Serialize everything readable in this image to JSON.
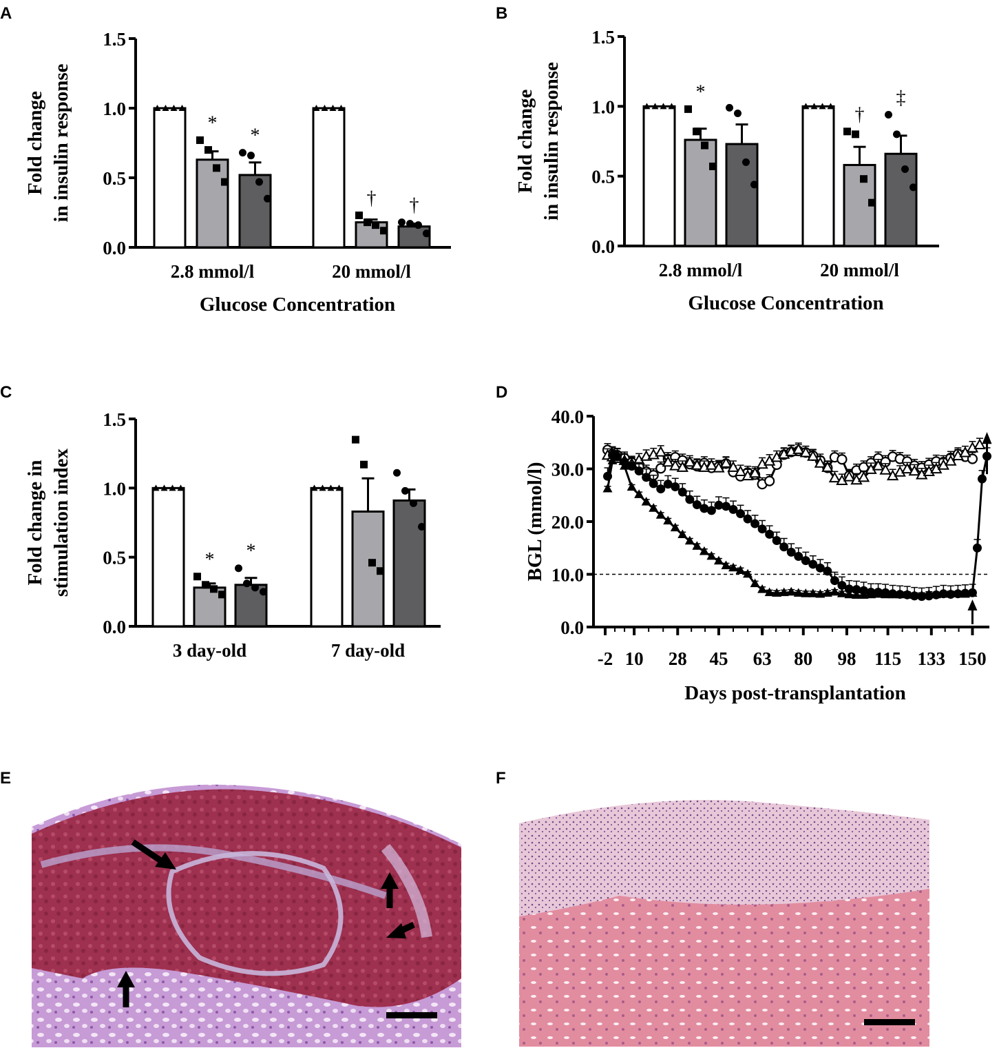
{
  "colors": {
    "white": "#ffffff",
    "light_gray": "#a7a7ab",
    "dark_gray": "#5e5e61",
    "ink": "#000000"
  },
  "chart_data": [
    {
      "panel": "A",
      "type": "bar",
      "categories": [
        "2.8 mmol/l",
        "20 mmol/l"
      ],
      "xlabel": "Glucose Concentration",
      "ylabel_lines": [
        "Fold change",
        "in insulin response"
      ],
      "ylim": [
        0,
        1.5
      ],
      "yticks": [
        "0.0",
        "0.5",
        "1.0",
        "1.5"
      ],
      "series": [
        {
          "fill": "white",
          "marker": "triangle",
          "values": [
            1.0,
            1.0
          ],
          "errors": [
            0,
            0
          ],
          "points": [
            [
              1,
              1,
              1,
              1
            ],
            [
              1,
              1,
              1,
              1
            ]
          ],
          "annotations": [
            "",
            ""
          ]
        },
        {
          "fill": "light_gray",
          "marker": "square",
          "values": [
            0.63,
            0.18
          ],
          "errors": [
            0.06,
            0.02
          ],
          "points": [
            [
              0.77,
              0.7,
              0.57,
              0.47
            ],
            [
              0.23,
              0.18,
              0.16,
              0.12
            ]
          ],
          "annotations": [
            "*",
            "†"
          ]
        },
        {
          "fill": "dark_gray",
          "marker": "circle",
          "values": [
            0.52,
            0.15
          ],
          "errors": [
            0.09,
            0.02
          ],
          "points": [
            [
              0.68,
              0.66,
              0.47,
              0.35
            ],
            [
              0.18,
              0.17,
              0.16,
              0.1
            ]
          ],
          "annotations": [
            "*",
            "†"
          ]
        }
      ]
    },
    {
      "panel": "B",
      "type": "bar",
      "categories": [
        "2.8 mmol/l",
        "20 mmol/l"
      ],
      "xlabel": "Glucose Concentration",
      "ylabel_lines": [
        "Fold change",
        "in insulin response"
      ],
      "ylim": [
        0,
        1.5
      ],
      "yticks": [
        "0.0",
        "0.5",
        "1.0",
        "1.5"
      ],
      "series": [
        {
          "fill": "white",
          "marker": "triangle",
          "values": [
            1.0,
            1.0
          ],
          "errors": [
            0,
            0
          ],
          "points": [
            [
              1,
              1,
              1,
              1
            ],
            [
              1,
              1,
              1,
              1
            ]
          ],
          "annotations": [
            "",
            ""
          ]
        },
        {
          "fill": "light_gray",
          "marker": "square",
          "values": [
            0.76,
            0.58
          ],
          "errors": [
            0.08,
            0.13
          ],
          "points": [
            [
              0.98,
              0.82,
              0.72,
              0.57
            ],
            [
              0.82,
              0.8,
              0.48,
              0.31
            ]
          ],
          "annotations": [
            "*",
            "†"
          ]
        },
        {
          "fill": "dark_gray",
          "marker": "circle",
          "values": [
            0.73,
            0.66
          ],
          "errors": [
            0.14,
            0.13
          ],
          "points": [
            [
              0.99,
              0.95,
              0.6,
              0.44
            ],
            [
              0.94,
              0.8,
              0.55,
              0.42
            ]
          ],
          "annotations": [
            "",
            "‡"
          ]
        }
      ]
    },
    {
      "panel": "C",
      "type": "bar",
      "categories": [
        "3 day-old",
        "7 day-old"
      ],
      "xlabel": "",
      "ylabel_lines": [
        "Fold change in",
        "stimulation index"
      ],
      "ylim": [
        0,
        1.5
      ],
      "yticks": [
        "0.0",
        "0.5",
        "1.0",
        "1.5"
      ],
      "series": [
        {
          "fill": "white",
          "marker": "triangle",
          "values": [
            1.0,
            1.0
          ],
          "errors": [
            0,
            0
          ],
          "points": [
            [
              1,
              1,
              1,
              1
            ],
            [
              1,
              1,
              1,
              1
            ]
          ],
          "annotations": [
            "",
            ""
          ]
        },
        {
          "fill": "light_gray",
          "marker": "square",
          "values": [
            0.28,
            0.83
          ],
          "errors": [
            0.03,
            0.24
          ],
          "points": [
            [
              0.36,
              0.3,
              0.27,
              0.23
            ],
            [
              1.35,
              1.17,
              0.46,
              0.4
            ]
          ],
          "annotations": [
            "*",
            ""
          ]
        },
        {
          "fill": "dark_gray",
          "marker": "circle",
          "values": [
            0.3,
            0.91
          ],
          "errors": [
            0.05,
            0.08
          ],
          "points": [
            [
              0.42,
              0.31,
              0.28,
              0.25
            ],
            [
              1.11,
              0.98,
              0.89,
              0.72
            ]
          ],
          "annotations": [
            "*",
            ""
          ]
        }
      ]
    },
    {
      "panel": "D",
      "type": "line",
      "xlabel": "Days post-transplantation",
      "ylabel": "BGL (mmol/l)",
      "xlim": [
        -2,
        157
      ],
      "ylim": [
        0,
        40
      ],
      "xticks": [
        -2,
        10,
        28,
        45,
        63,
        80,
        98,
        115,
        133,
        150
      ],
      "xtick_labels": [
        "-2",
        "10",
        "28",
        "45",
        "63",
        "80",
        "98",
        "115",
        "133",
        "150"
      ],
      "yticks": [
        0,
        10,
        20,
        30,
        40
      ],
      "ytick_labels": [
        "0.0",
        "10.0",
        "20.0",
        "30.0",
        "40.0"
      ],
      "reference_line": 10,
      "series": [
        {
          "marker": "open-circle",
          "x": [
            -1,
            1,
            3,
            6,
            9,
            12,
            15,
            18,
            21,
            24,
            27,
            30,
            33,
            36,
            39,
            42,
            45,
            48,
            51,
            54,
            57,
            60,
            63,
            66,
            69,
            72,
            75,
            78,
            81,
            84,
            87,
            90,
            93,
            96,
            99,
            102,
            105,
            108,
            111,
            114,
            117,
            120,
            123,
            126,
            129,
            132,
            135,
            138,
            141,
            144,
            147,
            150
          ],
          "y": [
            33.6,
            32.8,
            32.6,
            32,
            31.2,
            30.4,
            29.5,
            28.8,
            30.1,
            31.9,
            32.2,
            31.6,
            30.9,
            30.5,
            31.1,
            30.2,
            30.4,
            31,
            29.4,
            28.6,
            29.3,
            28.9,
            27.1,
            27.7,
            30.8,
            32.7,
            33.2,
            33.4,
            33.1,
            32.5,
            31.6,
            30.2,
            32.2,
            31.8,
            28.7,
            29.7,
            30.3,
            31.1,
            32,
            31.3,
            32.3,
            31.9,
            31.4,
            30.6,
            30.2,
            30.8,
            31.4,
            31.3,
            32.1,
            32.8,
            32.3,
            31.9
          ],
          "err": 1.2
        },
        {
          "marker": "open-triangle",
          "x": [
            -1,
            1,
            3,
            6,
            9,
            12,
            15,
            18,
            21,
            24,
            27,
            30,
            33,
            36,
            39,
            42,
            45,
            48,
            51,
            54,
            57,
            60,
            63,
            66,
            69,
            72,
            75,
            78,
            81,
            84,
            87,
            90,
            93,
            96,
            99,
            102,
            105,
            108,
            111,
            114,
            117,
            120,
            123,
            126,
            129,
            132,
            135,
            138,
            141,
            144,
            147,
            150,
            153
          ],
          "y": [
            32.5,
            32.2,
            31.9,
            31.5,
            30.9,
            31.6,
            32.3,
            32.6,
            33.1,
            31.2,
            30.5,
            30.2,
            31.2,
            30.6,
            30.2,
            30.6,
            30.1,
            31,
            30.2,
            29.4,
            28.6,
            29.1,
            30.8,
            31.4,
            32.1,
            32.7,
            33.2,
            33.6,
            33,
            32.3,
            31,
            30.2,
            28.2,
            27.7,
            28.4,
            27.8,
            28.3,
            29.8,
            30.5,
            29.7,
            28.6,
            29.3,
            29.9,
            29.5,
            28.8,
            29.4,
            29.9,
            30.6,
            31.4,
            32.4,
            33,
            33.9,
            34.5
          ],
          "err": 1.3
        },
        {
          "marker": "filled-circle",
          "x": [
            -1,
            1,
            3,
            6,
            9,
            12,
            15,
            18,
            21,
            24,
            27,
            30,
            33,
            36,
            39,
            42,
            45,
            48,
            51,
            54,
            57,
            60,
            63,
            66,
            69,
            72,
            75,
            78,
            81,
            84,
            87,
            90,
            93,
            96,
            99,
            102,
            105,
            108,
            111,
            114,
            117,
            120,
            123,
            126,
            129,
            132,
            135,
            138,
            141,
            144,
            147,
            150,
            152,
            154,
            156
          ],
          "y": [
            28.6,
            32.6,
            32.3,
            31.3,
            30.5,
            29.6,
            28.4,
            27.2,
            26.2,
            27.1,
            26.6,
            25.6,
            24.2,
            23.2,
            22.5,
            22.1,
            23.1,
            22.9,
            22.3,
            21.5,
            20.5,
            19.6,
            18.6,
            17.6,
            16.4,
            15.2,
            14.2,
            13.4,
            12.6,
            11.9,
            11.2,
            10.6,
            8.8,
            7.9,
            7.2,
            7.1,
            6.9,
            6.6,
            6.6,
            6.5,
            6.3,
            6.2,
            6.1,
            5.9,
            5.8,
            5.9,
            6.1,
            6.3,
            6.2,
            6.3,
            6.4,
            6.5,
            15,
            28.1,
            32.4
          ],
          "err": 1.6
        },
        {
          "marker": "filled-triangle",
          "x": [
            -1,
            1,
            3,
            6,
            9,
            12,
            15,
            18,
            21,
            24,
            27,
            30,
            33,
            36,
            39,
            42,
            45,
            48,
            51,
            54,
            57,
            60,
            63,
            66,
            69,
            72,
            75,
            78,
            81,
            84,
            87,
            90,
            93,
            96,
            99,
            102,
            105,
            108,
            111,
            114,
            117,
            120,
            123,
            126,
            129,
            132,
            135,
            138,
            141,
            144,
            147,
            150
          ],
          "y": [
            26.2,
            31.5,
            32.3,
            30.5,
            26.5,
            25.1,
            23.7,
            22.5,
            21.2,
            20.1,
            18.8,
            17.5,
            16.3,
            15.3,
            14.3,
            13.4,
            12.5,
            11.6,
            11.2,
            10.7,
            10,
            8.2,
            7.1,
            6.5,
            6.4,
            6.5,
            6.6,
            6.4,
            6.3,
            6.3,
            6.2,
            6.4,
            6.6,
            6.3,
            6.1,
            6.0,
            6.0,
            6.1,
            6.2,
            6.1,
            6.1,
            6.1,
            6.2,
            6.0,
            6.0,
            6.2,
            6.1,
            6.2,
            6.3,
            6.3,
            6.2,
            6.4
          ],
          "err": 0.5
        }
      ],
      "arrows_at_x": [
        150,
        156
      ]
    }
  ],
  "panels": {
    "a": "A",
    "b": "B",
    "c": "C",
    "d": "D",
    "e": "E",
    "f": "F"
  }
}
